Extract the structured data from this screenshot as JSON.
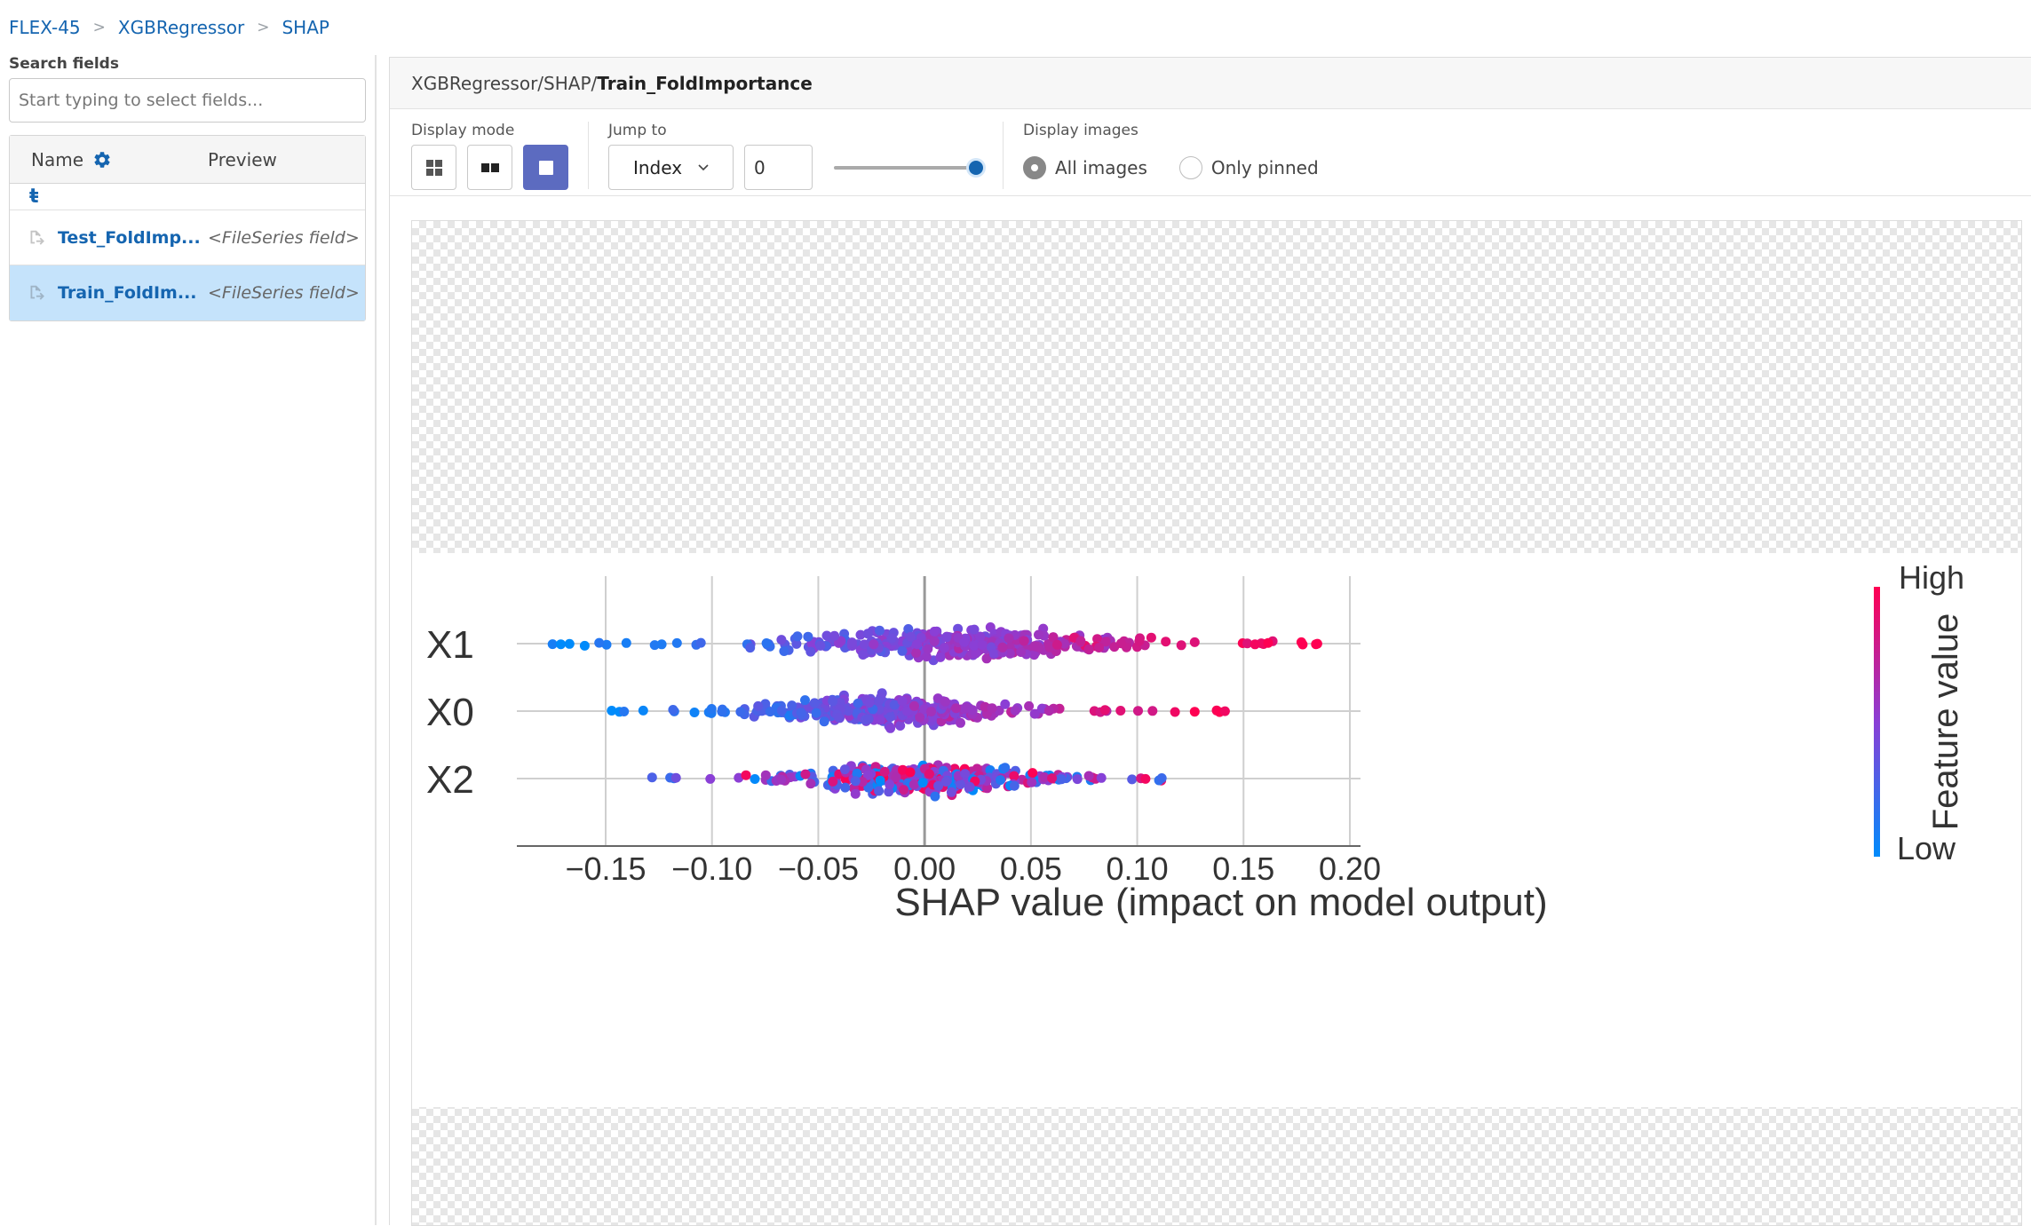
{
  "breadcrumb": [
    "FLEX-45",
    "XGBRegressor",
    "SHAP"
  ],
  "search": {
    "label": "Search fields",
    "placeholder": "Start typing to select fields..."
  },
  "table": {
    "name_header": "Name",
    "preview_header": "Preview",
    "up_symbol": "ŧ",
    "rows": [
      {
        "name": "Test_FoldImp...",
        "preview": "<FileSeries field>"
      },
      {
        "name": "Train_FoldIm...",
        "preview": "<FileSeries field>"
      }
    ]
  },
  "path": {
    "prefix": "XGBRegressor/SHAP/",
    "current": "Train_FoldImportance"
  },
  "toolbar": {
    "display_mode_label": "Display mode",
    "jump_to_label": "Jump to",
    "jump_mode": "Index",
    "index_value": "0",
    "slider_position": 1.0,
    "display_images_label": "Display images",
    "radio_all": "All images",
    "radio_pinned": "Only pinned",
    "selected_radio": "all"
  },
  "chart_data": {
    "type": "scatter",
    "subtype": "shap-beeswarm",
    "xlabel": "SHAP value (impact on model output)",
    "x_ticks": [
      "−0.15",
      "−0.10",
      "−0.05",
      "0.00",
      "0.05",
      "0.10",
      "0.15",
      "0.20"
    ],
    "x_tick_values": [
      -0.15,
      -0.1,
      -0.05,
      0.0,
      0.05,
      0.1,
      0.15,
      0.2
    ],
    "xlim": [
      -0.19,
      0.205
    ],
    "features": [
      {
        "name": "X1",
        "shap_range": [
          -0.175,
          0.188
        ],
        "dense_range": [
          -0.07,
          0.1
        ],
        "correlation": "positive"
      },
      {
        "name": "X0",
        "shap_range": [
          -0.148,
          0.146
        ],
        "dense_range": [
          -0.08,
          0.05
        ],
        "correlation": "positive"
      },
      {
        "name": "X2",
        "shap_range": [
          -0.137,
          0.114
        ],
        "dense_range": [
          -0.06,
          0.06
        ],
        "correlation": "mixed"
      }
    ],
    "colorbar": {
      "title": "Feature value",
      "high": "High",
      "low": "Low",
      "high_color": "#ff0052",
      "low_color": "#008bfb"
    },
    "grid": true
  }
}
